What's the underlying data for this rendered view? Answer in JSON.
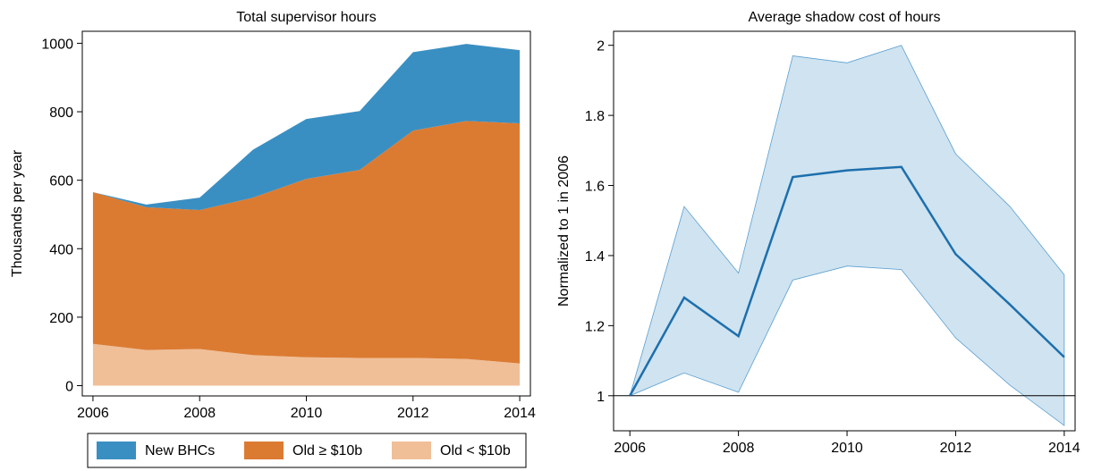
{
  "chart_data": [
    {
      "type": "stacked_area",
      "title": "Total supervisor hours",
      "y_label": "Thousands per year",
      "x": [
        2006,
        2007,
        2008,
        2009,
        2010,
        2011,
        2012,
        2013,
        2014
      ],
      "series": [
        {
          "name": "New BHCs",
          "color": "#3a8fc2",
          "values": [
            0,
            8,
            36,
            140,
            175,
            172,
            229,
            225,
            214
          ]
        },
        {
          "name": "Old ≥ $10b",
          "color": "#db7b32",
          "values": [
            443,
            417,
            406,
            460,
            521,
            549,
            664,
            695,
            701
          ]
        },
        {
          "name": "Old < $10b",
          "color": "#f0bf98",
          "values": [
            122,
            104,
            107,
            89,
            83,
            81,
            81,
            78,
            65
          ]
        }
      ],
      "xlim": [
        2005.8,
        2014.2
      ],
      "xticks": [
        2006,
        2008,
        2010,
        2012,
        2014
      ],
      "ylim": [
        -30,
        1035
      ],
      "yticks": [
        0,
        200,
        400,
        600,
        800,
        1000
      ],
      "legend": "bottom"
    },
    {
      "type": "line_band",
      "title": "Average shadow cost of hours",
      "y_label": "Normalized to 1 in 2006",
      "x": [
        2006,
        2007,
        2008,
        2009,
        2010,
        2011,
        2012,
        2013,
        2014
      ],
      "values": [
        1,
        1.28,
        1.17,
        1.624,
        1.643,
        1.653,
        1.404,
        1.26,
        1.11
      ],
      "upper": [
        1,
        1.54,
        1.35,
        1.97,
        1.95,
        2.0,
        1.69,
        1.54,
        1.345
      ],
      "lower": [
        1,
        1.065,
        1.01,
        1.33,
        1.37,
        1.36,
        1.165,
        1.03,
        0.915
      ],
      "color": "#1d6fad",
      "band_color": "#cfe3f0",
      "reference_line": 1,
      "xlim": [
        2005.7,
        2014.2
      ],
      "xticks": [
        2006,
        2008,
        2010,
        2012,
        2014
      ],
      "ylim": [
        0.9,
        2.04
      ],
      "yticks": [
        1,
        1.2,
        1.4,
        1.6,
        1.8,
        2
      ]
    }
  ]
}
